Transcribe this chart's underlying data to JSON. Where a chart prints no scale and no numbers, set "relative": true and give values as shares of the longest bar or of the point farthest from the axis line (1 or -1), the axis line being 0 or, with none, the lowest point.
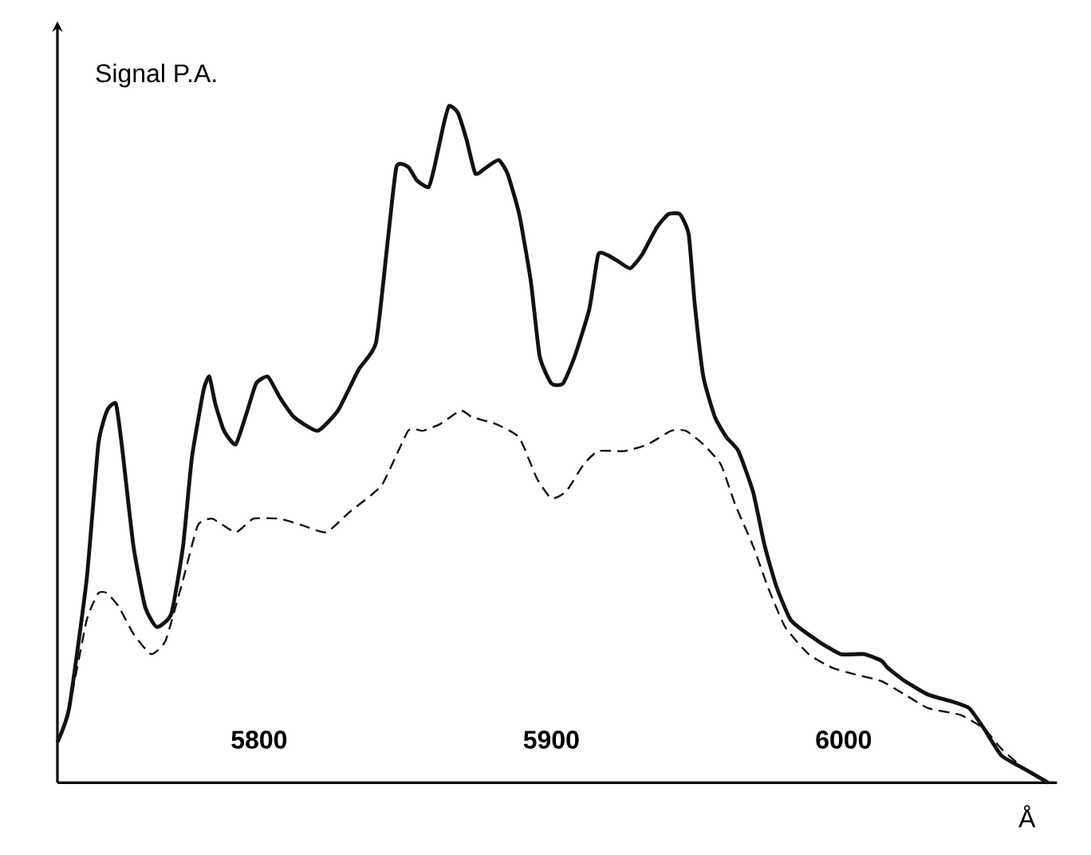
{
  "chart_data": {
    "type": "line",
    "relative": true,
    "ylabel": "Signal P.A.",
    "xlabel": "Å",
    "xlim": [
      5731,
      6073
    ],
    "xticks": [
      5800,
      5900,
      6000
    ],
    "grid": false,
    "marker": "none",
    "series": [
      {
        "color": "#111111",
        "line_style": "solid",
        "x": [
          5731,
          5735,
          5741,
          5745,
          5748,
          5751,
          5753,
          5757,
          5761,
          5765,
          5770,
          5774,
          5777,
          5781,
          5783,
          5785,
          5788,
          5792,
          5796,
          5799,
          5803,
          5807,
          5812,
          5820,
          5827,
          5834,
          5840,
          5844,
          5847,
          5851,
          5854,
          5858,
          5860,
          5863,
          5865,
          5868,
          5871,
          5874,
          5878,
          5882,
          5885,
          5889,
          5893,
          5896,
          5900,
          5904,
          5908,
          5913,
          5916,
          5919,
          5923,
          5927,
          5931,
          5936,
          5940,
          5944,
          5947,
          5949,
          5952,
          5956,
          5960,
          5964,
          5969,
          5973,
          5977,
          5982,
          5991,
          5999,
          6007,
          6013,
          6015,
          6021,
          6029,
          6037,
          6043,
          6048,
          6054,
          6062,
          6070
        ],
        "values": [
          0.06,
          0.11,
          0.3,
          0.5,
          0.55,
          0.56,
          0.5,
          0.35,
          0.26,
          0.23,
          0.25,
          0.35,
          0.48,
          0.58,
          0.6,
          0.56,
          0.52,
          0.5,
          0.55,
          0.59,
          0.6,
          0.57,
          0.54,
          0.52,
          0.55,
          0.61,
          0.65,
          0.8,
          0.91,
          0.91,
          0.89,
          0.88,
          0.91,
          0.97,
          1.0,
          0.99,
          0.95,
          0.9,
          0.91,
          0.92,
          0.9,
          0.84,
          0.74,
          0.63,
          0.59,
          0.59,
          0.63,
          0.7,
          0.78,
          0.78,
          0.77,
          0.76,
          0.78,
          0.82,
          0.84,
          0.84,
          0.81,
          0.71,
          0.6,
          0.54,
          0.51,
          0.49,
          0.43,
          0.35,
          0.29,
          0.24,
          0.21,
          0.19,
          0.19,
          0.18,
          0.17,
          0.15,
          0.13,
          0.12,
          0.11,
          0.08,
          0.04,
          0.02,
          0.0
        ]
      },
      {
        "color": "#111111",
        "line_style": "dashed",
        "x": [
          5731,
          5735,
          5741,
          5745,
          5748,
          5752,
          5757,
          5763,
          5768,
          5774,
          5779,
          5784,
          5792,
          5798,
          5807,
          5815,
          5823,
          5831,
          5842,
          5851,
          5856,
          5862,
          5869,
          5873,
          5881,
          5889,
          5895,
          5900,
          5905,
          5911,
          5916,
          5925,
          5933,
          5941,
          5946,
          5952,
          5958,
          5963,
          5969,
          5974,
          5980,
          5988,
          5996,
          6004,
          6013,
          6021,
          6029,
          6040,
          6048,
          6054,
          6062,
          6070
        ],
        "values": [
          0.06,
          0.11,
          0.24,
          0.28,
          0.28,
          0.26,
          0.22,
          0.19,
          0.21,
          0.3,
          0.38,
          0.39,
          0.37,
          0.39,
          0.39,
          0.38,
          0.37,
          0.4,
          0.44,
          0.52,
          0.52,
          0.53,
          0.55,
          0.54,
          0.53,
          0.51,
          0.45,
          0.42,
          0.43,
          0.47,
          0.49,
          0.49,
          0.5,
          0.52,
          0.52,
          0.5,
          0.47,
          0.41,
          0.35,
          0.29,
          0.23,
          0.19,
          0.17,
          0.16,
          0.15,
          0.13,
          0.11,
          0.1,
          0.08,
          0.05,
          0.02,
          0.0
        ]
      }
    ]
  }
}
